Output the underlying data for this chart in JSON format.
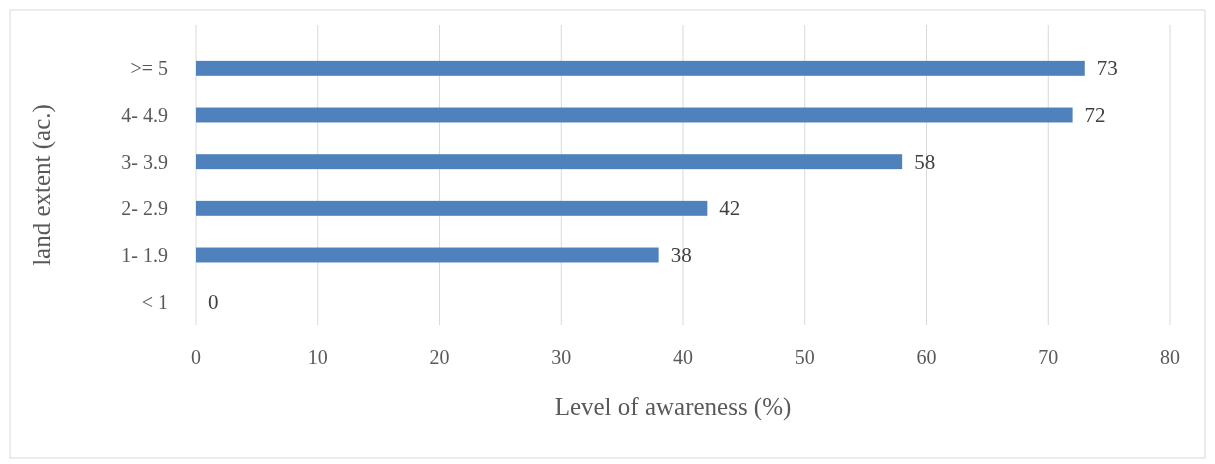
{
  "chart_data": {
    "type": "bar",
    "orientation": "horizontal",
    "xlabel": "Level of awareness (%)",
    "ylabel": "land extent (ac.)",
    "categories": [
      ">= 5",
      "4- 4.9",
      "3- 3.9",
      "2- 2.9",
      "1- 1.9",
      "< 1"
    ],
    "values": [
      73,
      72,
      58,
      42,
      38,
      0
    ],
    "color": "#4f81bd",
    "xlim": [
      0,
      80
    ],
    "xticks": [
      0,
      10,
      20,
      30,
      40,
      50,
      60,
      70,
      80
    ],
    "grid": "x",
    "data_labels": true
  }
}
